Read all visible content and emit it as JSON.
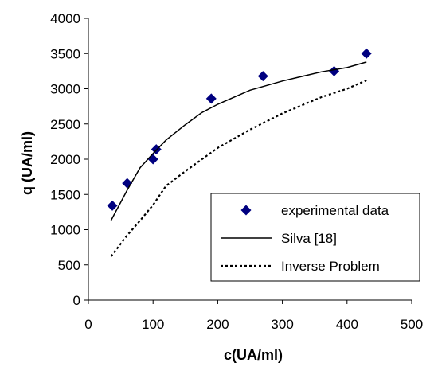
{
  "chart_data": {
    "type": "scatter",
    "title": "",
    "xlabel": "c(UA/ml)",
    "ylabel": "q (UA/ml)",
    "xlim": [
      0,
      500
    ],
    "ylim": [
      0,
      4000
    ],
    "x_ticks": [
      0,
      100,
      200,
      300,
      400,
      500
    ],
    "y_ticks": [
      0,
      500,
      1000,
      1500,
      2000,
      2500,
      3000,
      3500,
      4000
    ],
    "grid": false,
    "legend_position": "bottom-right",
    "series": [
      {
        "name": "experimental data",
        "kind": "markers",
        "marker": "diamond",
        "color": "#000080",
        "points": [
          {
            "x": 37,
            "y": 1340
          },
          {
            "x": 60,
            "y": 1660
          },
          {
            "x": 100,
            "y": 2000
          },
          {
            "x": 105,
            "y": 2140
          },
          {
            "x": 190,
            "y": 2860
          },
          {
            "x": 270,
            "y": 3180
          },
          {
            "x": 380,
            "y": 3250
          },
          {
            "x": 430,
            "y": 3500
          }
        ]
      },
      {
        "name": "Silva [18]",
        "kind": "line",
        "line_style": "solid",
        "color": "#000000",
        "points": [
          {
            "x": 35,
            "y": 1130
          },
          {
            "x": 60,
            "y": 1560
          },
          {
            "x": 80,
            "y": 1880
          },
          {
            "x": 100,
            "y": 2080
          },
          {
            "x": 120,
            "y": 2270
          },
          {
            "x": 150,
            "y": 2490
          },
          {
            "x": 175,
            "y": 2660
          },
          {
            "x": 200,
            "y": 2780
          },
          {
            "x": 250,
            "y": 2980
          },
          {
            "x": 300,
            "y": 3110
          },
          {
            "x": 360,
            "y": 3240
          },
          {
            "x": 400,
            "y": 3300
          },
          {
            "x": 430,
            "y": 3380
          }
        ]
      },
      {
        "name": "Inverse Problem",
        "kind": "line",
        "line_style": "dotted",
        "color": "#000000",
        "points": [
          {
            "x": 35,
            "y": 620
          },
          {
            "x": 60,
            "y": 920
          },
          {
            "x": 80,
            "y": 1130
          },
          {
            "x": 100,
            "y": 1350
          },
          {
            "x": 120,
            "y": 1620
          },
          {
            "x": 150,
            "y": 1830
          },
          {
            "x": 200,
            "y": 2160
          },
          {
            "x": 250,
            "y": 2420
          },
          {
            "x": 300,
            "y": 2650
          },
          {
            "x": 360,
            "y": 2880
          },
          {
            "x": 400,
            "y": 3000
          },
          {
            "x": 430,
            "y": 3120
          }
        ]
      }
    ]
  }
}
